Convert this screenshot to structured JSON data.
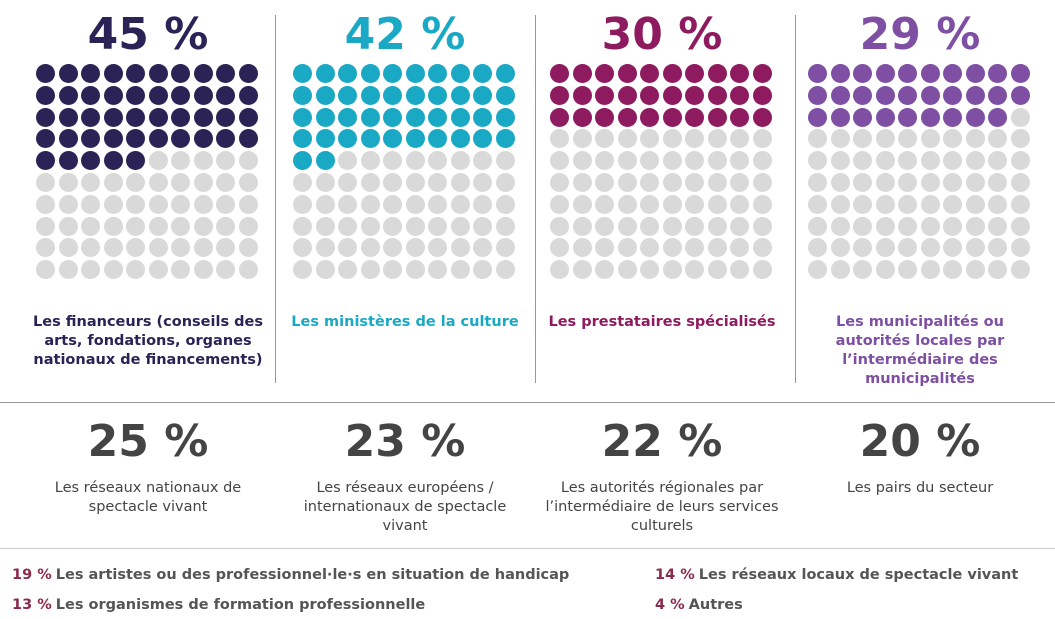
{
  "chart_data": [
    {
      "type": "waffle",
      "value": 45,
      "value_label": "45 %",
      "label": "Les financeurs (conseils des arts, fondations, organes nationaux de financements)",
      "color": "#2b2356",
      "empty_color": "#d9d9d9"
    },
    {
      "type": "waffle",
      "value": 42,
      "value_label": "42 %",
      "label": "Les ministères de la culture",
      "color": "#1aa9c4",
      "empty_color": "#d9d9d9"
    },
    {
      "type": "waffle",
      "value": 30,
      "value_label": "30 %",
      "label": "Les prestataires spécialisés",
      "color": "#8e1a5f",
      "empty_color": "#d9d9d9"
    },
    {
      "type": "waffle",
      "value": 29,
      "value_label": "29 %",
      "label": "Les municipalités ou autorités locales par l’intermédiaire des municipalités",
      "color": "#7e4fa3",
      "empty_color": "#d9d9d9"
    }
  ],
  "secondary": [
    {
      "value": "25 %",
      "label": "Les réseaux nationaux de spectacle vivant"
    },
    {
      "value": "23 %",
      "label": "Les réseaux européens / internationaux de spectacle vivant"
    },
    {
      "value": "22 %",
      "label": "Les autorités régionales par l’intermédiaire de leurs services culturels"
    },
    {
      "value": "20 %",
      "label": "Les pairs du secteur"
    }
  ],
  "others": [
    {
      "value": "19 %",
      "label": "Les artistes ou des professionnel·le·s en situation de handicap"
    },
    {
      "value": "14 %",
      "label": "Les réseaux locaux de spectacle vivant"
    },
    {
      "value": "13 %",
      "label": "Les organismes de formation professionnelle"
    },
    {
      "value": "4 %",
      "label": "Autres"
    }
  ]
}
